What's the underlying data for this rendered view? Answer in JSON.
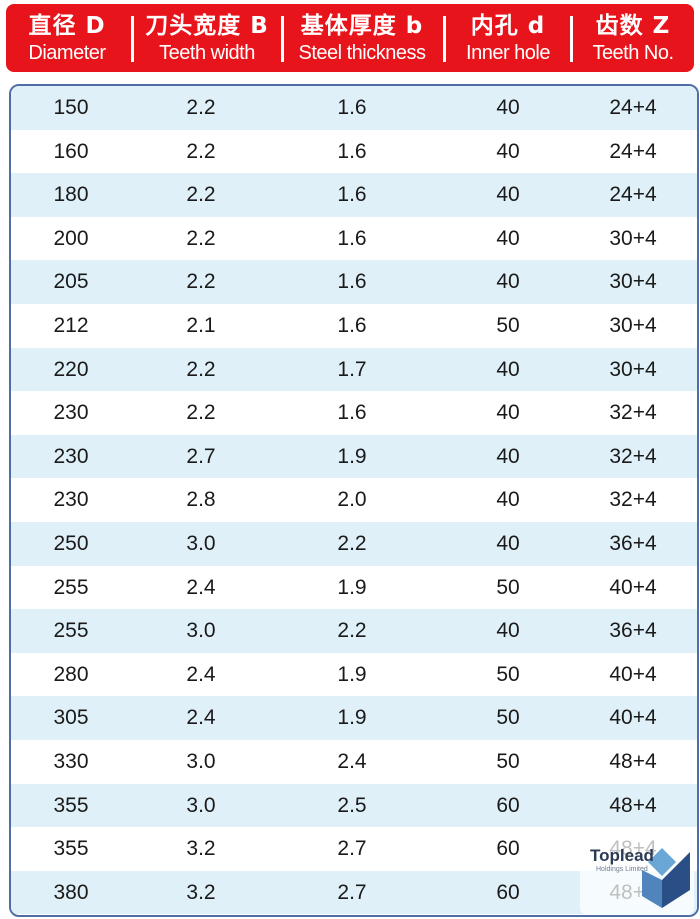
{
  "columns": [
    {
      "zh": "直径 D",
      "en": "Diameter"
    },
    {
      "zh": "刀头宽度 B",
      "en": "Teeth width"
    },
    {
      "zh": "基体厚度 b",
      "en": "Steel thickness"
    },
    {
      "zh": "内孔 d",
      "en": "Inner hole"
    },
    {
      "zh": "齿数 Z",
      "en": "Teeth No."
    }
  ],
  "rows": [
    [
      "150",
      "2.2",
      "1.6",
      "40",
      "24+4"
    ],
    [
      "160",
      "2.2",
      "1.6",
      "40",
      "24+4"
    ],
    [
      "180",
      "2.2",
      "1.6",
      "40",
      "24+4"
    ],
    [
      "200",
      "2.2",
      "1.6",
      "40",
      "30+4"
    ],
    [
      "205",
      "2.2",
      "1.6",
      "40",
      "30+4"
    ],
    [
      "212",
      "2.1",
      "1.6",
      "50",
      "30+4"
    ],
    [
      "220",
      "2.2",
      "1.7",
      "40",
      "30+4"
    ],
    [
      "230",
      "2.2",
      "1.6",
      "40",
      "32+4"
    ],
    [
      "230",
      "2.7",
      "1.9",
      "40",
      "32+4"
    ],
    [
      "230",
      "2.8",
      "2.0",
      "40",
      "32+4"
    ],
    [
      "250",
      "3.0",
      "2.2",
      "40",
      "36+4"
    ],
    [
      "255",
      "2.4",
      "1.9",
      "50",
      "40+4"
    ],
    [
      "255",
      "3.0",
      "2.2",
      "40",
      "36+4"
    ],
    [
      "280",
      "2.4",
      "1.9",
      "50",
      "40+4"
    ],
    [
      "305",
      "2.4",
      "1.9",
      "50",
      "40+4"
    ],
    [
      "330",
      "3.0",
      "2.4",
      "50",
      "48+4"
    ],
    [
      "355",
      "3.0",
      "2.5",
      "60",
      "48+4"
    ],
    [
      "355",
      "3.2",
      "2.7",
      "60",
      "48+4"
    ],
    [
      "380",
      "3.2",
      "2.7",
      "60",
      "48+4"
    ]
  ],
  "colors": {
    "header_bg": "#e8141b",
    "row_shade": "#dff0f8",
    "border": "#4f6ea6"
  },
  "watermark": {
    "name": "Toplead",
    "subtitle": "Holdings Limited"
  }
}
